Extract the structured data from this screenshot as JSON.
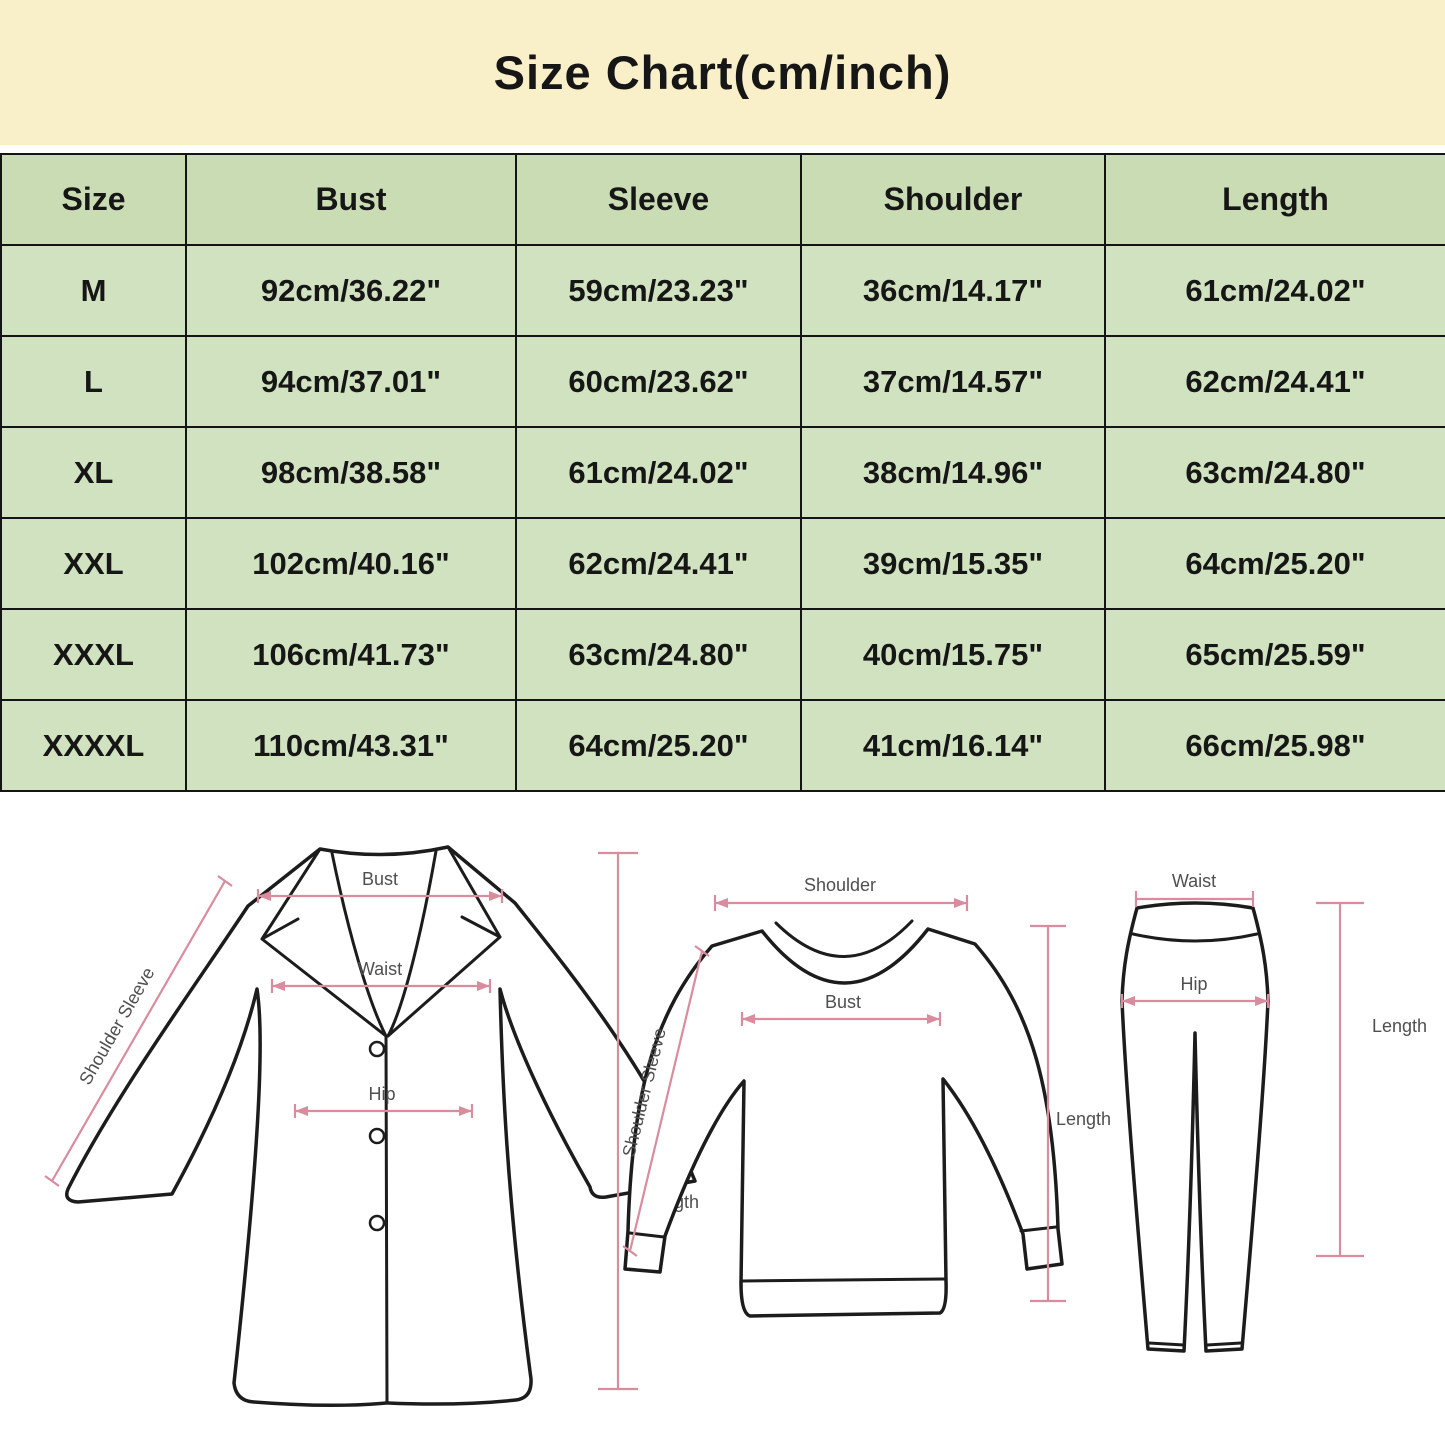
{
  "title": "Size Chart(cm/inch)",
  "chart_data": {
    "type": "table",
    "title": "Size Chart(cm/inch)",
    "columns": [
      "Size",
      "Bust",
      "Sleeve",
      "Shoulder",
      "Length"
    ],
    "rows": [
      [
        "M",
        "92cm/36.22\"",
        "59cm/23.23\"",
        "36cm/14.17\"",
        "61cm/24.02\""
      ],
      [
        "L",
        "94cm/37.01\"",
        "60cm/23.62\"",
        "37cm/14.57\"",
        "62cm/24.41\""
      ],
      [
        "XL",
        "98cm/38.58\"",
        "61cm/24.02\"",
        "38cm/14.96\"",
        "63cm/24.80\""
      ],
      [
        "XXL",
        "102cm/40.16\"",
        "62cm/24.41\"",
        "39cm/15.35\"",
        "64cm/25.20\""
      ],
      [
        "XXXL",
        "106cm/41.73\"",
        "63cm/24.80\"",
        "40cm/15.75\"",
        "65cm/25.59\""
      ],
      [
        "XXXXL",
        "110cm/43.31\"",
        "64cm/25.20\"",
        "41cm/16.14\"",
        "66cm/25.98\""
      ]
    ]
  },
  "diagrams": {
    "coat": {
      "labels": {
        "bust": "Bust",
        "waist": "Waist",
        "hip": "Hip",
        "shoulder_sleeve": "Shoulder Sleeve",
        "length": "Length"
      }
    },
    "sweater": {
      "labels": {
        "shoulder": "Shoulder",
        "bust": "Bust",
        "shoulder_sleeve": "Shoulder Sleeve",
        "length": "Length"
      }
    },
    "pants": {
      "labels": {
        "waist": "Waist",
        "hip": "Hip",
        "length": "Length"
      }
    }
  },
  "colors": {
    "title_bg": "#f9efc8",
    "header_bg": "#c9dcb4",
    "row_bg": "#d0e2bf",
    "grid": "#141414",
    "arrow_pink": "#d98c9e",
    "diagram_label": "#4f4f4f",
    "text": "#161616"
  }
}
